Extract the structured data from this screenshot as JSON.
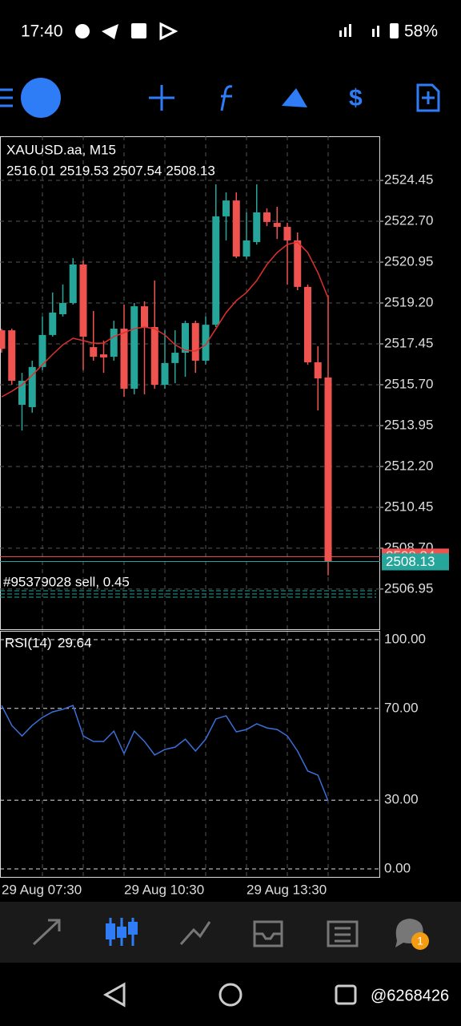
{
  "status_bar": {
    "time": "17:40",
    "battery": "58%"
  },
  "chart_data": {
    "type": "candlestick",
    "symbol": "XAUUSD.aa, M15",
    "ohlc": [
      2516.01,
      2519.53,
      2507.54,
      2508.13
    ],
    "categories": [
      "29 Aug 07:30",
      null,
      null,
      null,
      null,
      null,
      null,
      null,
      null,
      null,
      null,
      null,
      "29 Aug 10:30",
      null,
      null,
      null,
      null,
      null,
      null,
      null,
      null,
      null,
      null,
      null,
      "29 Aug 13:30",
      null,
      null,
      null,
      null,
      null,
      null,
      null,
      null
    ],
    "open": [
      2518.03,
      2518.03,
      2514.84,
      2514.74,
      2516.46,
      2517.83,
      2518.72,
      2519.2,
      2520.85,
      2517.31,
      2517.0,
      2516.9,
      2518.1,
      2515.53,
      2519.06,
      2518.17,
      2515.7,
      2516.63,
      2517.07,
      2518.34,
      2516.73,
      2518.27,
      2522.91,
      2523.59,
      2521.19,
      2521.81,
      2523.08,
      2522.63,
      2522.46,
      2521.88,
      2519.89,
      2516.66,
      2516.01
    ],
    "high": [
      2518.1,
      2518.1,
      2516.21,
      2516.73,
      2518.62,
      2519.65,
      2519.99,
      2521.12,
      2521.02,
      2518.86,
      2517.59,
      2518.44,
      2519.13,
      2519.2,
      2519.27,
      2520.16,
      2518.03,
      2518.03,
      2518.44,
      2518.44,
      2518.62,
      2524.28,
      2523.94,
      2523.94,
      2523.08,
      2524.28,
      2523.25,
      2523.32,
      2522.63,
      2522.22,
      2519.99,
      2517.35,
      2519.53
    ],
    "low": [
      2517.07,
      2515.7,
      2513.74,
      2514.5,
      2516.32,
      2517.76,
      2518.62,
      2519.13,
      2516.32,
      2516.73,
      2516.21,
      2516.73,
      2515.18,
      2515.29,
      2515.29,
      2515.53,
      2515.53,
      2515.77,
      2516.04,
      2516.21,
      2516.56,
      2518.17,
      2521.88,
      2521.12,
      2521.09,
      2521.7,
      2522.49,
      2521.94,
      2519.99,
      2519.75,
      2516.56,
      2514.6,
      2507.54
    ],
    "close": [
      2517.24,
      2515.87,
      2515.87,
      2516.46,
      2517.83,
      2518.79,
      2519.2,
      2520.85,
      2517.76,
      2516.9,
      2516.87,
      2518.1,
      2515.53,
      2519.06,
      2518.17,
      2515.7,
      2516.63,
      2517.07,
      2518.34,
      2516.73,
      2518.27,
      2522.91,
      2523.59,
      2521.19,
      2521.88,
      2523.08,
      2522.67,
      2522.46,
      2521.88,
      2519.89,
      2516.66,
      2515.97,
      2508.13
    ],
    "up_color": "#26a69a",
    "down_color": "#ef5350",
    "ma": {
      "color": "#e0302d",
      "values": [
        2515.18,
        2515.42,
        2515.7,
        2516.11,
        2516.56,
        2517.0,
        2517.41,
        2517.69,
        2517.59,
        2517.48,
        2517.48,
        2517.76,
        2517.93,
        2518.1,
        2518.17,
        2518.1,
        2517.83,
        2517.41,
        2517.17,
        2517.14,
        2517.41,
        2518.1,
        2518.79,
        2519.3,
        2519.65,
        2520.16,
        2520.85,
        2521.36,
        2521.71,
        2521.81,
        2521.36,
        2520.5,
        2519.41
      ]
    },
    "ask": 2508.34,
    "ask_color": "#ef5350",
    "bid_color": "#26a69a",
    "order": "#95379028 sell, 0.45",
    "ylim": [
      2505.23,
      2526.34
    ],
    "yticks": [
      2524.45,
      {
        "value": 2522.7,
        "label": "2522.70"
      },
      2520.95,
      {
        "value": 2519.2,
        "label": "2519.20"
      },
      2517.45,
      {
        "value": 2515.7,
        "label": "2515.70"
      },
      2513.95,
      {
        "value": 2512.2,
        "label": "2512.20"
      },
      2510.45,
      {
        "value": 2508.7,
        "label": "2508.70"
      },
      2506.95
    ],
    "grid": true,
    "rsi": {
      "title": "RSI(14)",
      "current": 29.64,
      "color": "#3b6fd9",
      "values": [
        71.3,
        62.6,
        58.0,
        62.6,
        66.1,
        68.5,
        69.6,
        71.3,
        58.0,
        55.6,
        55.6,
        60.1,
        50.3,
        60.1,
        55.6,
        49.7,
        52.1,
        53.1,
        56.6,
        51.4,
        56.6,
        65.4,
        66.8,
        59.8,
        60.8,
        63.3,
        61.5,
        60.8,
        58.0,
        51.4,
        42.7,
        40.9,
        29.64
      ],
      "ylim": [
        -3.85,
        103.5
      ],
      "yticks": [
        {
          "value": 100,
          "label": "100.00"
        },
        {
          "value": 70,
          "label": "70.00"
        },
        {
          "value": 30,
          "label": "30.00"
        },
        {
          "value": 0,
          "label": "0.00"
        }
      ]
    }
  },
  "notification_badge": "1",
  "watermark": "@6268426"
}
